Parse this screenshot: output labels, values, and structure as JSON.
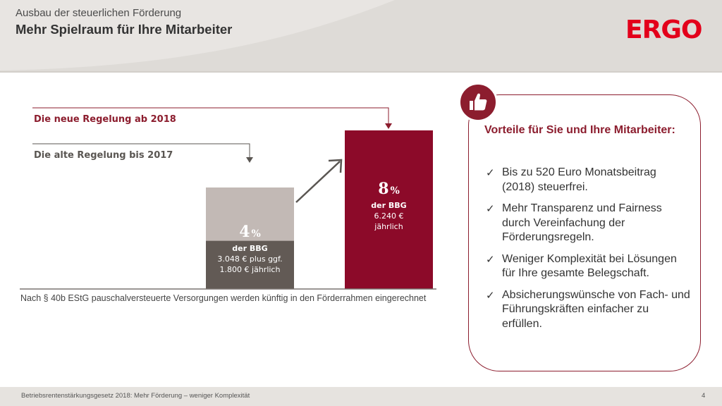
{
  "header": {
    "kicker": "Ausbau der steuerlichen Förderung",
    "title": "Mehr Spielraum für Ihre Mitarbeiter",
    "logo": "ERGO",
    "brand_color": "#e3001b"
  },
  "chart_data": {
    "type": "bar",
    "categories": [
      "Die alte Regelung bis 2017",
      "Die neue Regelung ab 2018"
    ],
    "values": [
      4,
      8
    ],
    "unit": "%",
    "ylim": [
      0,
      8
    ],
    "grid": false,
    "stacked_segment_old": {
      "note": "Die alte Regelung bis 2017",
      "base_value": 4,
      "lower_share": 0.5
    },
    "series_colors": {
      "old_lower": "#625a55",
      "old_upper": "#c2b9b5",
      "new": "#8c0a29"
    },
    "legend": {
      "new": "Die neue Regelung ab 2018",
      "old": "Die alte Regelung bis 2017"
    },
    "labels": {
      "old": {
        "pct": "4",
        "sym": "%",
        "line1": "der BBG",
        "line2": "3.048 € plus ggf.",
        "line3": "1.800 € jährlich"
      },
      "new": {
        "pct": "8",
        "sym": "%",
        "line1": "der BBG",
        "line2": "6.240 €",
        "line3": "jährlich"
      }
    },
    "footnote": "Nach § 40b EStG pauschalversteuerte Versorgungen werden künftig in den Förderrahmen eingerechnet"
  },
  "benefits": {
    "title": "Vorteile für Sie und Ihre Mitarbeiter:",
    "icon": "thumbs-up-icon",
    "check_glyph": "✓",
    "items": [
      "Bis zu 520 Euro Monatsbeitrag (2018) steuerfrei.",
      "Mehr Transparenz und Fairness durch Vereinfachung der Förderungsregeln.",
      "Weniger Komplexität bei Lösungen für Ihre gesamte Belegschaft.",
      "Absicherungswünsche von Fach- und Führungskräften einfacher zu erfüllen."
    ]
  },
  "footer": {
    "text": "Betriebsrentenstärkungsgesetz 2018: Mehr Förderung – weniger Komplexität",
    "page": "4"
  }
}
